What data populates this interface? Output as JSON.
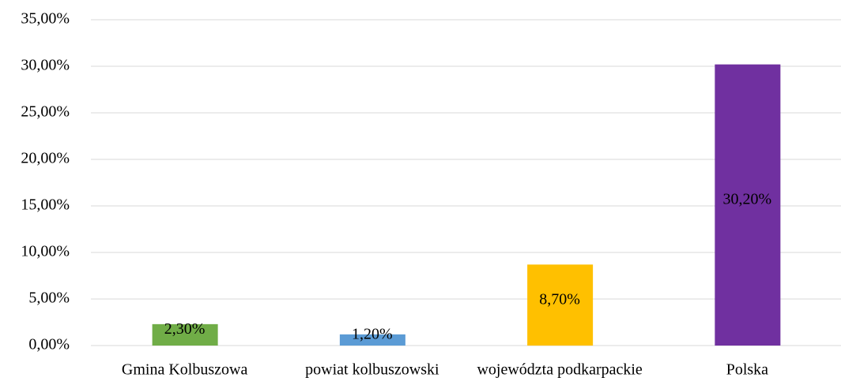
{
  "chart_data": {
    "type": "bar",
    "categories": [
      "Gmina Kolbuszowa",
      "powiat kolbuszowski",
      "województa podkarpackie",
      "Polska"
    ],
    "values": [
      2.3,
      1.2,
      8.7,
      30.2
    ],
    "value_labels": [
      "2,30%",
      "1,20%",
      "8,70%",
      "30,20%"
    ],
    "colors": [
      "#70ad47",
      "#5b9bd5",
      "#ffc000",
      "#7030a0"
    ],
    "ylim": [
      0,
      35
    ],
    "yticks": [
      {
        "value": 0,
        "label": "0,00%"
      },
      {
        "value": 5,
        "label": "5,00%"
      },
      {
        "value": 10,
        "label": "10,00%"
      },
      {
        "value": 15,
        "label": "15,00%"
      },
      {
        "value": 20,
        "label": "20,00%"
      },
      {
        "value": 25,
        "label": "25,00%"
      },
      {
        "value": 30,
        "label": "30,00%"
      },
      {
        "value": 35,
        "label": "35,00%"
      }
    ],
    "grid": true
  }
}
